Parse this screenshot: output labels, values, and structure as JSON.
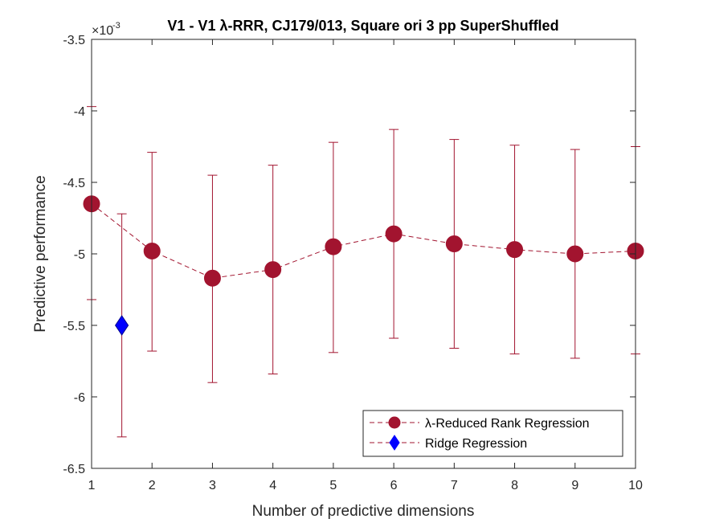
{
  "chart_data": {
    "type": "line",
    "title": "V1 - V1 λ-RRR, CJ179/013, Square ori 3 pp SuperShuffled",
    "xlabel": "Number of predictive dimensions",
    "ylabel": "Predictive performance",
    "exponent_label": "×10",
    "exponent_power": "-3",
    "xlim": [
      1,
      10
    ],
    "ylim": [
      -6.5,
      -3.5
    ],
    "x_ticks": [
      "1",
      "2",
      "3",
      "4",
      "5",
      "6",
      "7",
      "8",
      "9",
      "10"
    ],
    "y_ticks": [
      "-3.5",
      "-4",
      "-4.5",
      "-5",
      "-5.5",
      "-6",
      "-6.5"
    ],
    "grid": false,
    "legend_position": "bottom-right",
    "series": [
      {
        "name": "λ-Reduced Rank Regression",
        "color": "#A2142F",
        "marker": "circle",
        "line_style": "dashed",
        "x": [
          1,
          2,
          3,
          4,
          5,
          6,
          7,
          8,
          9,
          10
        ],
        "y": [
          -4.65,
          -4.98,
          -5.17,
          -5.11,
          -4.95,
          -4.86,
          -4.93,
          -4.97,
          -5.0,
          -4.98
        ],
        "err_low": [
          -5.32,
          -5.68,
          -5.9,
          -5.84,
          -5.69,
          -5.59,
          -5.66,
          -5.7,
          -5.73,
          -5.7
        ],
        "err_high": [
          -3.97,
          -4.29,
          -4.45,
          -4.38,
          -4.22,
          -4.13,
          -4.2,
          -4.24,
          -4.27,
          -4.25
        ]
      },
      {
        "name": "Ridge Regression",
        "color": "#0000FF",
        "marker": "diamond",
        "line_style": "dashed",
        "x": [
          1.5
        ],
        "y": [
          -5.5
        ],
        "err_low": [
          -6.28
        ],
        "err_high": [
          -4.72
        ]
      }
    ]
  }
}
